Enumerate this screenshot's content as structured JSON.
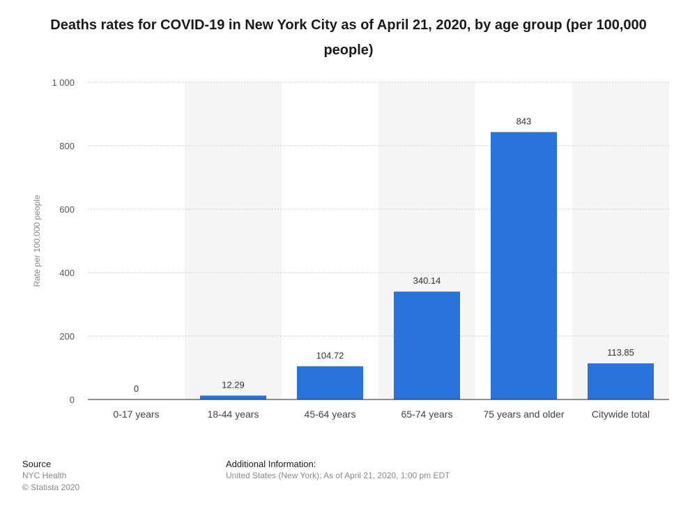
{
  "chart_data": {
    "type": "bar",
    "title": "Deaths rates for COVID-19 in New York City as of April 21, 2020, by age group (per 100,000 people)",
    "xlabel": "",
    "ylabel": "Rate per 100,000 people",
    "categories": [
      "0-17 years",
      "18-44 years",
      "45-64 years",
      "65-74 years",
      "75 years and older",
      "Citywide total"
    ],
    "values": [
      0,
      12.29,
      104.72,
      340.14,
      843,
      113.85
    ],
    "value_labels": [
      "0",
      "12.29",
      "104.72",
      "340.14",
      "843",
      "113.85"
    ],
    "ylim": [
      0,
      1000
    ],
    "yticks": [
      0,
      200,
      400,
      600,
      800,
      1000
    ],
    "ytick_labels": [
      "0",
      "200",
      "400",
      "600",
      "800",
      "1 000"
    ],
    "grid": true,
    "bar_color": "#2872dc",
    "band_color": "#f5f5f5"
  },
  "footer": {
    "source_heading": "Source",
    "source_lines": [
      "NYC Health",
      "© Statista 2020"
    ],
    "info_heading": "Additional Information:",
    "info_text": "United States (New York); As of April 21, 2020, 1:00 pm EDT"
  }
}
